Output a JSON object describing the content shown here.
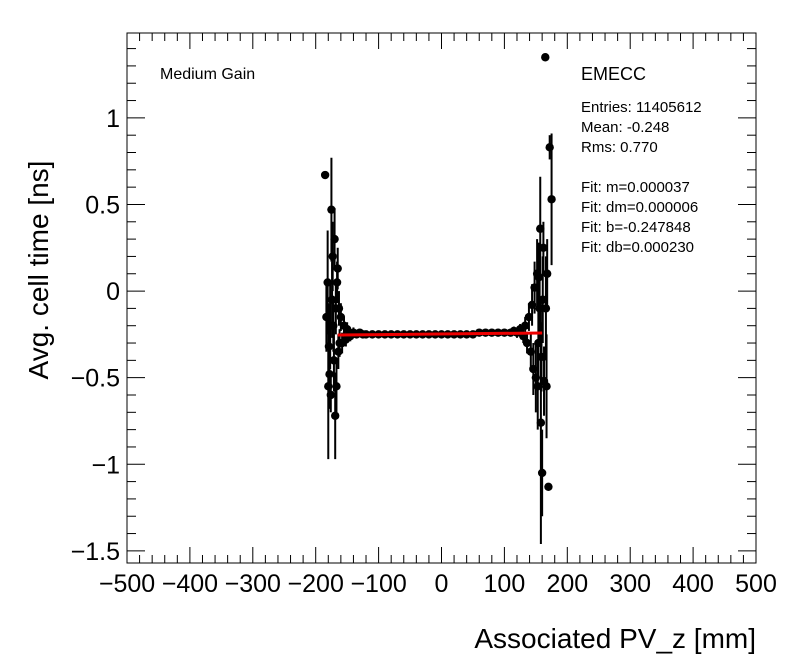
{
  "chart_data": {
    "type": "scatter",
    "xlabel": "Associated PV_z [mm]",
    "ylabel": "Avg. cell time [ns]",
    "xlim": [
      -500,
      500
    ],
    "ylim": [
      -1.57,
      1.49
    ],
    "x_ticks": [
      -500,
      -400,
      -300,
      -200,
      -100,
      0,
      100,
      200,
      300,
      400,
      500
    ],
    "x_tick_labels": [
      "−500",
      "−400",
      "−300",
      "−200",
      "−100",
      "0",
      "100",
      "200",
      "300",
      "400",
      "500"
    ],
    "y_ticks": [
      -1.5,
      -1,
      -0.5,
      0,
      0.5,
      1
    ],
    "y_tick_labels": [
      "−1.5",
      "−1",
      "−0.5",
      "0",
      "0.5",
      "1"
    ],
    "grid": false,
    "annotations": {
      "gain": "Medium Gain",
      "detector": "EMECC",
      "stats": [
        "Entries: 11405612",
        "Mean: -0.248",
        "Rms: 0.770",
        "",
        "Fit: m=0.000037",
        "Fit: dm=0.000006",
        "Fit: b=-0.247848",
        "Fit: db=0.000230"
      ]
    },
    "fit_line": {
      "m": 3.7e-05,
      "b": -0.247848,
      "x_range": [
        -165,
        160
      ],
      "color": "#ee0000"
    },
    "series": [
      {
        "marker_color": "#000000",
        "points": [
          {
            "x": -185,
            "y": 0.67,
            "err": 0.0
          },
          {
            "x": -183,
            "y": -0.15,
            "err": 0.2
          },
          {
            "x": -181,
            "y": 0.05,
            "err": 0.3
          },
          {
            "x": -180,
            "y": -0.55,
            "err": 0.42
          },
          {
            "x": -179,
            "y": -0.32,
            "err": 0.25
          },
          {
            "x": -178,
            "y": -0.48,
            "err": 0.2
          },
          {
            "x": -177,
            "y": -0.2,
            "err": 0.25
          },
          {
            "x": -176,
            "y": -0.6,
            "err": 0.1
          },
          {
            "x": -175,
            "y": 0.47,
            "err": 0.3
          },
          {
            "x": -174,
            "y": -0.05,
            "err": 0.22
          },
          {
            "x": -173,
            "y": 0.2,
            "err": 0.2
          },
          {
            "x": -172,
            "y": -0.2,
            "err": 0.15
          },
          {
            "x": -171,
            "y": -0.4,
            "err": 0.18
          },
          {
            "x": -170,
            "y": 0.3,
            "err": 0.18
          },
          {
            "x": -169,
            "y": -0.72,
            "err": 0.25
          },
          {
            "x": -168,
            "y": -0.1,
            "err": 0.15
          },
          {
            "x": -167,
            "y": -0.55,
            "err": 0.15
          },
          {
            "x": -166,
            "y": 0.05,
            "err": 0.12
          },
          {
            "x": -165,
            "y": 0.13,
            "err": 0.12
          },
          {
            "x": -164,
            "y": -0.35,
            "err": 0.1
          },
          {
            "x": -163,
            "y": -0.1,
            "err": 0.1
          },
          {
            "x": -162,
            "y": -0.3,
            "err": 0.08
          },
          {
            "x": -160,
            "y": -0.15,
            "err": 0.08
          },
          {
            "x": -158,
            "y": -0.3,
            "err": 0.06
          },
          {
            "x": -155,
            "y": -0.2,
            "err": 0.05
          },
          {
            "x": -152,
            "y": -0.28,
            "err": 0.04
          },
          {
            "x": -150,
            "y": -0.22,
            "err": 0.04
          },
          {
            "x": -145,
            "y": -0.26,
            "err": 0.03
          },
          {
            "x": -140,
            "y": -0.24,
            "err": 0.03
          },
          {
            "x": -135,
            "y": -0.25,
            "err": 0.02
          },
          {
            "x": -130,
            "y": -0.24,
            "err": 0.02
          },
          {
            "x": -125,
            "y": -0.25,
            "err": 0.02
          },
          {
            "x": -120,
            "y": -0.25,
            "err": 0.015
          },
          {
            "x": -110,
            "y": -0.25,
            "err": 0.01
          },
          {
            "x": -100,
            "y": -0.25,
            "err": 0.01
          },
          {
            "x": -90,
            "y": -0.25,
            "err": 0.01
          },
          {
            "x": -80,
            "y": -0.25,
            "err": 0.01
          },
          {
            "x": -70,
            "y": -0.25,
            "err": 0.01
          },
          {
            "x": -60,
            "y": -0.25,
            "err": 0.01
          },
          {
            "x": -50,
            "y": -0.25,
            "err": 0.01
          },
          {
            "x": -40,
            "y": -0.25,
            "err": 0.01
          },
          {
            "x": -30,
            "y": -0.25,
            "err": 0.01
          },
          {
            "x": -20,
            "y": -0.25,
            "err": 0.01
          },
          {
            "x": -10,
            "y": -0.25,
            "err": 0.01
          },
          {
            "x": 0,
            "y": -0.25,
            "err": 0.01
          },
          {
            "x": 10,
            "y": -0.25,
            "err": 0.01
          },
          {
            "x": 20,
            "y": -0.25,
            "err": 0.01
          },
          {
            "x": 30,
            "y": -0.25,
            "err": 0.01
          },
          {
            "x": 40,
            "y": -0.25,
            "err": 0.01
          },
          {
            "x": 50,
            "y": -0.25,
            "err": 0.01
          },
          {
            "x": 60,
            "y": -0.24,
            "err": 0.01
          },
          {
            "x": 70,
            "y": -0.24,
            "err": 0.01
          },
          {
            "x": 80,
            "y": -0.24,
            "err": 0.01
          },
          {
            "x": 90,
            "y": -0.24,
            "err": 0.015
          },
          {
            "x": 100,
            "y": -0.24,
            "err": 0.02
          },
          {
            "x": 110,
            "y": -0.24,
            "err": 0.02
          },
          {
            "x": 115,
            "y": -0.23,
            "err": 0.025
          },
          {
            "x": 120,
            "y": -0.24,
            "err": 0.03
          },
          {
            "x": 125,
            "y": -0.22,
            "err": 0.03
          },
          {
            "x": 130,
            "y": -0.26,
            "err": 0.04
          },
          {
            "x": 133,
            "y": -0.2,
            "err": 0.05
          },
          {
            "x": 136,
            "y": -0.3,
            "err": 0.06
          },
          {
            "x": 139,
            "y": -0.15,
            "err": 0.08
          },
          {
            "x": 142,
            "y": -0.35,
            "err": 0.1
          },
          {
            "x": 144,
            "y": -0.08,
            "err": 0.12
          },
          {
            "x": 146,
            "y": -0.45,
            "err": 0.15
          },
          {
            "x": 148,
            "y": 0.02,
            "err": 0.15
          },
          {
            "x": 150,
            "y": -0.5,
            "err": 0.2
          },
          {
            "x": 152,
            "y": 0.1,
            "err": 0.2
          },
          {
            "x": 153,
            "y": -0.55,
            "err": 0.25
          },
          {
            "x": 154,
            "y": -0.3,
            "err": 0.2
          },
          {
            "x": 155,
            "y": 0.08,
            "err": 0.2
          },
          {
            "x": 156,
            "y": -0.1,
            "err": 0.2
          },
          {
            "x": 157,
            "y": 0.36,
            "err": 0.3
          },
          {
            "x": 158,
            "y": -0.76,
            "err": 0.7
          },
          {
            "x": 159,
            "y": -0.38,
            "err": 0.2
          },
          {
            "x": 160,
            "y": -1.05,
            "err": 0.25
          },
          {
            "x": 161,
            "y": -0.05,
            "err": 0.25
          },
          {
            "x": 162,
            "y": 0.25,
            "err": 0.15
          },
          {
            "x": 163,
            "y": -0.52,
            "err": 0.2
          },
          {
            "x": 165,
            "y": 1.35,
            "err": 0.0
          },
          {
            "x": 166,
            "y": -0.1,
            "err": 0.3
          },
          {
            "x": 167,
            "y": -0.55,
            "err": 0.3
          },
          {
            "x": 168,
            "y": 0.1,
            "err": 0.2
          },
          {
            "x": 170,
            "y": -1.13,
            "err": 0.0
          },
          {
            "x": 172,
            "y": 0.83,
            "err": 0.07
          },
          {
            "x": 175,
            "y": 0.53,
            "err": 0.38
          }
        ]
      }
    ]
  }
}
